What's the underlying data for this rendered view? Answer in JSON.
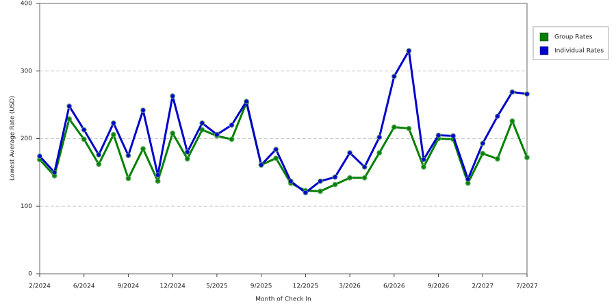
{
  "chart_data": {
    "type": "line",
    "x_label": "Month of Check In",
    "y_label": "Lowest Average Rate (USD)",
    "categories": [
      "2/2024",
      null,
      null,
      "6/2024",
      null,
      null,
      "9/2024",
      null,
      null,
      "12/2024",
      null,
      null,
      "5/2025",
      null,
      null,
      "9/2025",
      null,
      null,
      "12/2025",
      null,
      null,
      "3/2026",
      null,
      null,
      "6/2026",
      null,
      null,
      "9/2026",
      null,
      null,
      "2/2027",
      null,
      null,
      "7/2027"
    ],
    "series": [
      {
        "name": "Group Rates",
        "color": "#008000",
        "values": [
          169,
          145,
          229,
          199,
          162,
          206,
          141,
          185,
          137,
          208,
          170,
          213,
          204,
          199,
          253,
          161,
          171,
          134,
          123,
          122,
          132,
          142,
          142,
          179,
          217,
          215,
          158,
          200,
          199,
          134,
          178,
          170,
          226,
          172
        ]
      },
      {
        "name": "Individual Rates",
        "color": "#0000cc",
        "values": [
          174,
          150,
          248,
          213,
          176,
          223,
          175,
          242,
          146,
          263,
          180,
          223,
          206,
          220,
          255,
          161,
          184,
          137,
          120,
          137,
          143,
          179,
          158,
          202,
          292,
          330,
          169,
          205,
          204,
          140,
          193,
          233,
          269,
          266
        ]
      }
    ],
    "ylim": [
      0,
      400
    ],
    "yticks": [
      0,
      100,
      200,
      300,
      400
    ],
    "grid": true,
    "legend": "right"
  }
}
